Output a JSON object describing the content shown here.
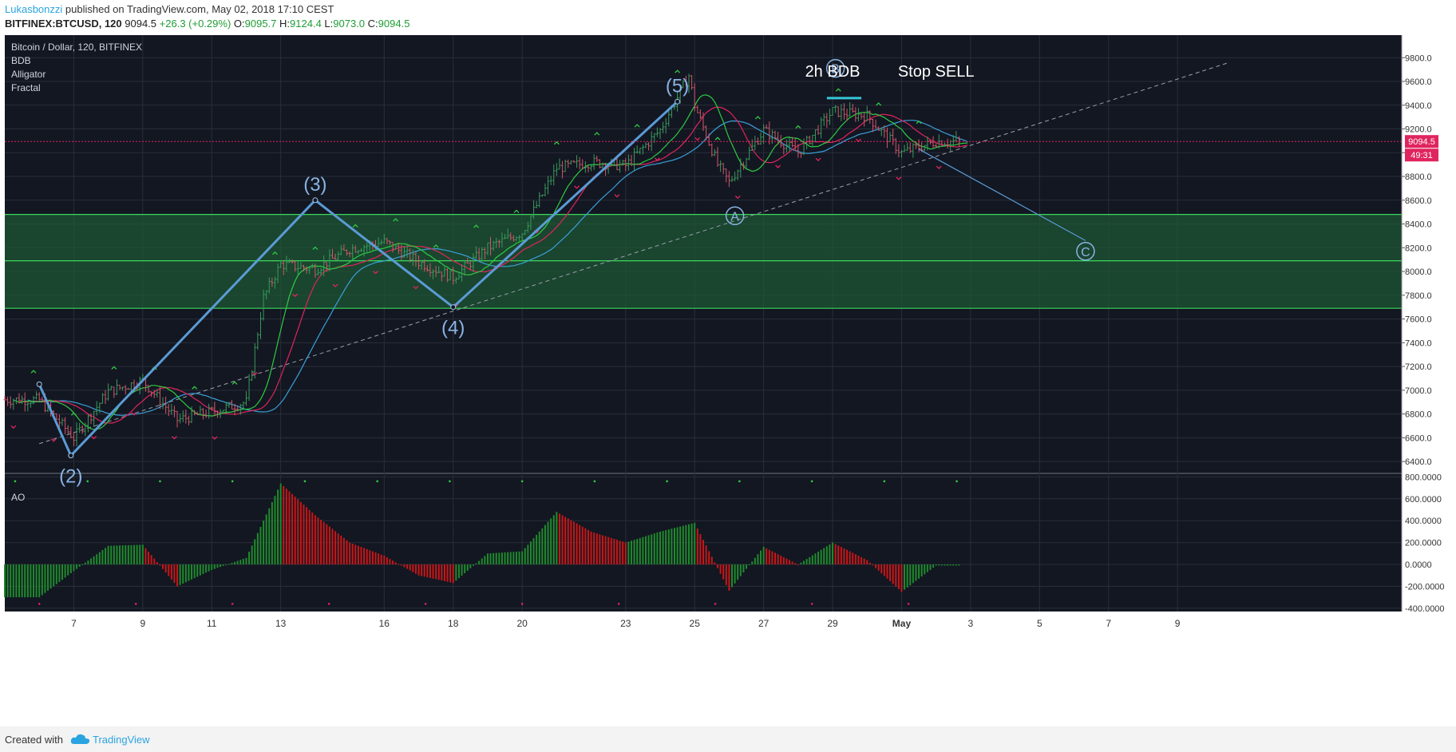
{
  "header": {
    "author": "Lukasbonzzi",
    "published": " published on TradingView.com, May 02, 2018 17:10 CEST",
    "symbol": "BITFINEX:BTCUSD, 120",
    "last": "9094.5",
    "change": "+26.3 (+0.29%)",
    "o_label": "O:",
    "o": "9095.7",
    "h_label": "H:",
    "h": "9124.4",
    "l_label": "L:",
    "l": "9073.0",
    "c_label": "C:",
    "c": "9094.5"
  },
  "legend": {
    "title": "Bitcoin / Dollar, 120, BITFINEX",
    "indicators": [
      "BDB",
      "Alligator",
      "Fractal"
    ]
  },
  "colors": {
    "background": "#131722",
    "grid": "#2a2e39",
    "up": "#3a9a5c",
    "down": "#d0566a",
    "wave": "#5b9bd5",
    "zone": "#1e5a34",
    "zone_line": "#3cd75c",
    "ao_up": "#1f8b2c",
    "ao_down": "#c81717",
    "lips": "#2ecc40",
    "teeth": "#e0245e",
    "jaw": "#3aa0d8"
  },
  "chart_data": [
    {
      "type": "line",
      "title": "Bitcoin / Dollar, 120, BITFINEX",
      "x_ticks": [
        "7",
        "9",
        "11",
        "13",
        "16",
        "18",
        "20",
        "23",
        "25",
        "27",
        "29",
        "May",
        "3",
        "5",
        "7",
        "9"
      ],
      "y_ticks": [
        6400,
        6600,
        6800,
        7000,
        7200,
        7400,
        7600,
        7800,
        8000,
        8200,
        8400,
        8600,
        8800,
        9000,
        9200,
        9400,
        9600,
        9800
      ],
      "ylim": [
        6320,
        9990
      ],
      "last_price": "9094.5",
      "countdown": "49:31",
      "zones": [
        {
          "from": 8090,
          "to": 8480
        },
        {
          "from": 7690,
          "to": 8090
        }
      ],
      "series": [
        {
          "points": [
            {
              "x": "Apr 6",
              "y": 7050
            },
            {
              "x": "Apr 6 22:00",
              "y": 6450
            },
            {
              "x": "Apr 14",
              "y": 8600
            },
            {
              "x": "Apr 18",
              "y": 7700
            },
            {
              "x": "Apr 24 12:00",
              "y": 9430
            }
          ]
        }
      ],
      "wave_labels": [
        {
          "label": "(2)",
          "x": "Apr 6 22:00",
          "y": 6450
        },
        {
          "label": "(3)",
          "x": "Apr 14",
          "y": 8600
        },
        {
          "label": "(4)",
          "x": "Apr 18",
          "y": 7700
        },
        {
          "label": "(5)",
          "x": "Apr 24 12:00",
          "y": 9430
        },
        {
          "label": "A",
          "x": "Apr 26 04:00",
          "y": 8590
        },
        {
          "label": "B",
          "x": "Apr 29 02:00",
          "y": 9520
        },
        {
          "label": "C",
          "x": "May 6 08:00",
          "y": 8250
        }
      ],
      "annotations": [
        {
          "text": "2h BDB",
          "x": "Apr 29",
          "y": 9640
        },
        {
          "text": "Stop SELL",
          "x": "May 2",
          "y": 9640
        }
      ],
      "forecast": [
        {
          "x": "May 1 12:00",
          "y": 9030
        },
        {
          "x": "May 6 08:00",
          "y": 8260
        }
      ],
      "trendline": [
        {
          "x": "Apr 6",
          "y": 6550
        },
        {
          "x": "May 10 12:00",
          "y": 9760
        }
      ],
      "key_closes": [
        {
          "x": "Apr 6",
          "y": 6920
        },
        {
          "x": "Apr 7",
          "y": 6600
        },
        {
          "x": "Apr 8",
          "y": 6990
        },
        {
          "x": "Apr 9",
          "y": 7080
        },
        {
          "x": "Apr 10",
          "y": 6750
        },
        {
          "x": "Apr 11",
          "y": 6820
        },
        {
          "x": "Apr 12",
          "y": 6900
        },
        {
          "x": "Apr 12 12:00",
          "y": 7780
        },
        {
          "x": "Apr 13",
          "y": 8060
        },
        {
          "x": "Apr 14",
          "y": 8020
        },
        {
          "x": "Apr 15",
          "y": 8190
        },
        {
          "x": "Apr 16",
          "y": 8250
        },
        {
          "x": "Apr 17",
          "y": 8080
        },
        {
          "x": "Apr 18",
          "y": 7950
        },
        {
          "x": "Apr 19",
          "y": 8200
        },
        {
          "x": "Apr 20",
          "y": 8330
        },
        {
          "x": "Apr 21",
          "y": 8870
        },
        {
          "x": "Apr 22",
          "y": 8920
        },
        {
          "x": "Apr 23",
          "y": 8890
        },
        {
          "x": "Apr 24",
          "y": 9190
        },
        {
          "x": "Apr 24 20:00",
          "y": 9650
        },
        {
          "x": "Apr 25",
          "y": 9400
        },
        {
          "x": "Apr 25 16:00",
          "y": 8900
        },
        {
          "x": "Apr 26",
          "y": 8750
        },
        {
          "x": "Apr 27",
          "y": 9190
        },
        {
          "x": "Apr 28",
          "y": 9000
        },
        {
          "x": "Apr 29",
          "y": 9350
        },
        {
          "x": "Apr 30",
          "y": 9310
        },
        {
          "x": "May 1",
          "y": 9000
        },
        {
          "x": "May 2",
          "y": 9094.5
        }
      ]
    },
    {
      "type": "bar",
      "title": "AO",
      "y_ticks": [
        800,
        600,
        400,
        200,
        0,
        -200,
        -400
      ],
      "ylim": [
        -430,
        810
      ],
      "key_values": [
        {
          "x": "Apr 6",
          "y": -300
        },
        {
          "x": "Apr 7",
          "y": -60
        },
        {
          "x": "Apr 8",
          "y": 170
        },
        {
          "x": "Apr 9",
          "y": 180
        },
        {
          "x": "Apr 10",
          "y": -200
        },
        {
          "x": "Apr 11",
          "y": -50
        },
        {
          "x": "Apr 12",
          "y": 60
        },
        {
          "x": "Apr 13",
          "y": 740
        },
        {
          "x": "Apr 14",
          "y": 450
        },
        {
          "x": "Apr 15",
          "y": 200
        },
        {
          "x": "Apr 16",
          "y": 80
        },
        {
          "x": "Apr 17",
          "y": -100
        },
        {
          "x": "Apr 18",
          "y": -170
        },
        {
          "x": "Apr 19",
          "y": 100
        },
        {
          "x": "Apr 20",
          "y": 120
        },
        {
          "x": "Apr 21",
          "y": 480
        },
        {
          "x": "Apr 22",
          "y": 300
        },
        {
          "x": "Apr 23",
          "y": 200
        },
        {
          "x": "Apr 24",
          "y": 300
        },
        {
          "x": "Apr 25",
          "y": 380
        },
        {
          "x": "Apr 26",
          "y": -240
        },
        {
          "x": "Apr 27",
          "y": 160
        },
        {
          "x": "Apr 28",
          "y": 0
        },
        {
          "x": "Apr 29",
          "y": 200
        },
        {
          "x": "Apr 30",
          "y": 40
        },
        {
          "x": "May 1",
          "y": -250
        },
        {
          "x": "May 2",
          "y": -10
        }
      ]
    }
  ],
  "footer": {
    "created": "Created with",
    "brand": "TradingView"
  }
}
